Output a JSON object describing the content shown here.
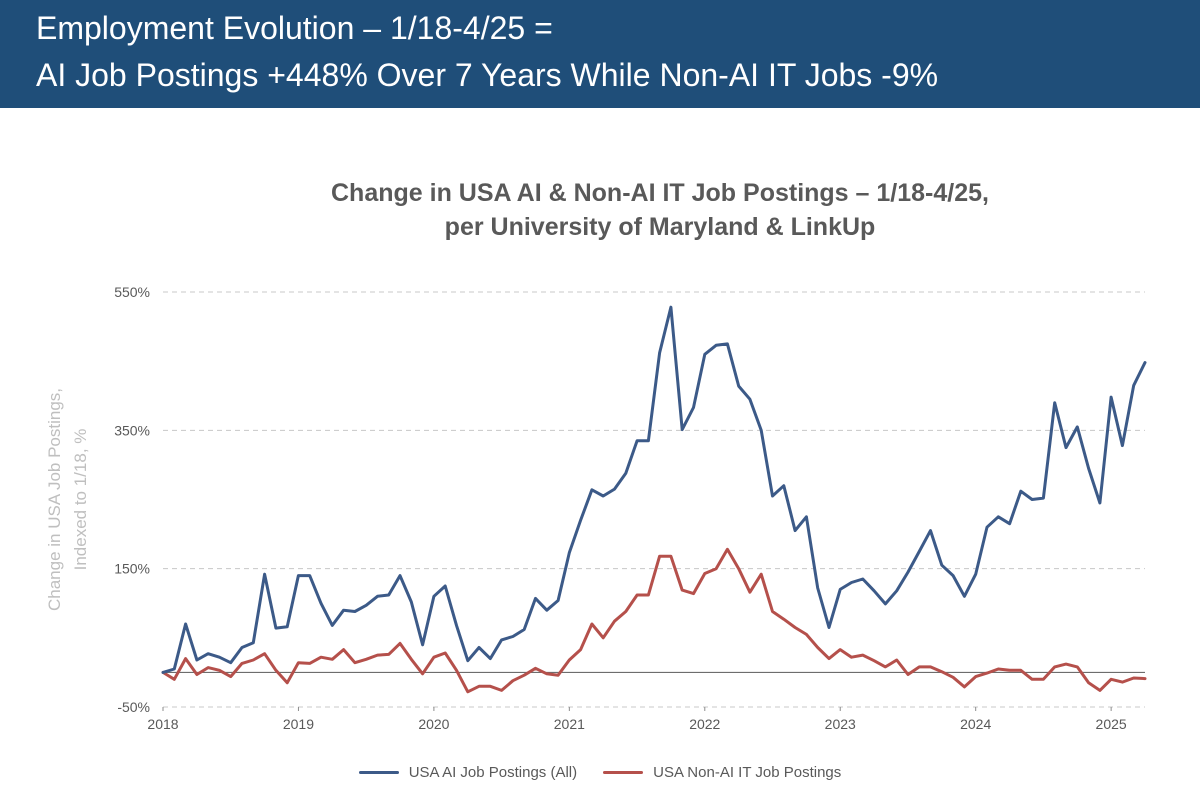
{
  "header": {
    "line1": "Employment Evolution – 1/18-4/25 =",
    "line2": "AI Job Postings +448% Over 7 Years While Non-AI IT Jobs -9%",
    "background": "#1f4e79"
  },
  "chart_data": {
    "type": "line",
    "title_line1": "Change in USA AI & Non-AI IT Job Postings – 1/18-4/25,",
    "title_line2": "per University of Maryland & LinkUp",
    "ylabel_line1": "Change in USA Job Postings,",
    "ylabel_line2": "Indexed to 1/18, %",
    "xlabel": "",
    "ylim": [
      -50,
      550
    ],
    "y_ticks": [
      -50,
      150,
      350,
      550
    ],
    "y_tick_labels": [
      "-50%",
      "150%",
      "350%",
      "550%"
    ],
    "x_ticks": [
      "2018",
      "2019",
      "2020",
      "2021",
      "2022",
      "2023",
      "2024",
      "2025"
    ],
    "x_start": 2018.0,
    "x_end": 2025.25,
    "grid": true,
    "legend_position": "bottom",
    "series": [
      {
        "name": "USA AI Job Postings (All)",
        "color": "#3c5a88",
        "values": [
          0,
          5,
          70,
          18,
          27,
          22,
          14,
          36,
          43,
          142,
          64,
          66,
          140,
          140,
          100,
          68,
          90,
          88,
          97,
          110,
          112,
          140,
          102,
          40,
          110,
          125,
          68,
          17,
          36,
          20,
          47,
          52,
          62,
          107,
          90,
          104,
          173,
          220,
          264,
          255,
          265,
          288,
          335,
          335,
          462,
          528,
          351,
          383,
          460,
          473,
          475,
          414,
          395,
          350,
          255,
          270,
          205,
          225,
          122,
          65,
          120,
          130,
          135,
          118,
          99,
          118,
          145,
          175,
          205,
          155,
          140,
          110,
          142,
          210,
          225,
          215,
          262,
          250,
          252,
          390,
          325,
          355,
          295,
          245,
          398,
          328,
          415,
          448
        ]
      },
      {
        "name": "USA Non-AI IT Job Postings",
        "color": "#b5504b",
        "values": [
          0,
          -10,
          20,
          -3,
          7,
          3,
          -6,
          13,
          18,
          27,
          3,
          -15,
          14,
          13,
          22,
          19,
          33,
          14,
          19,
          25,
          26,
          42,
          19,
          -2,
          22,
          28,
          3,
          -28,
          -20,
          -20,
          -26,
          -12,
          -4,
          6,
          -2,
          -4,
          18,
          33,
          70,
          50,
          74,
          88,
          112,
          112,
          168,
          168,
          119,
          114,
          143,
          150,
          178,
          150,
          116,
          142,
          88,
          77,
          65,
          55,
          36,
          20,
          33,
          22,
          25,
          17,
          8,
          18,
          -3,
          8,
          8,
          1,
          -7,
          -21,
          -6,
          -1,
          5,
          3,
          3,
          -10,
          -10,
          8,
          12,
          8,
          -15,
          -26,
          -10,
          -14,
          -8,
          -9
        ]
      }
    ]
  }
}
